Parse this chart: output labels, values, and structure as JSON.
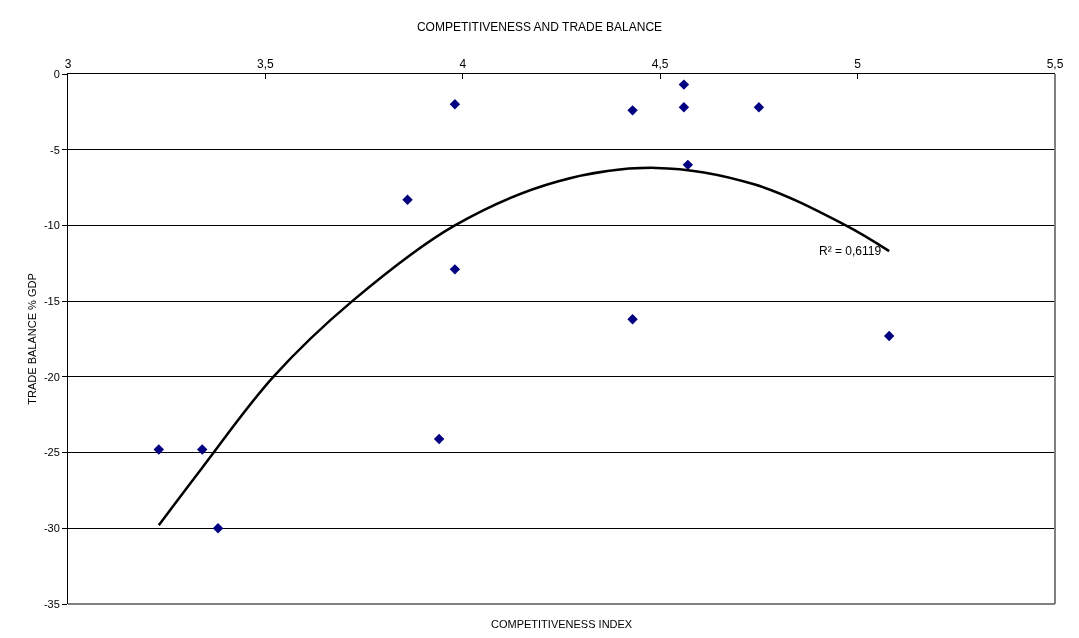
{
  "chart_data": {
    "type": "scatter",
    "title": "COMPETITIVENESS AND TRADE BALANCE",
    "xlabel": "COMPETITIVENESS INDEX",
    "ylabel": "TRADE BALANCE % GDP",
    "xlim": [
      3,
      5.5
    ],
    "xticks": [
      3,
      {
        "value": 3.5,
        "label": "3,5"
      },
      4,
      {
        "value": 4.5,
        "label": "4,5"
      },
      5,
      {
        "value": 5.5,
        "label": "5,5"
      }
    ],
    "ylim": [
      -35,
      0
    ],
    "yticks": [
      -35,
      -30,
      -25,
      -20,
      -15,
      -10,
      -5,
      0
    ],
    "grid": "y",
    "marker": "diamond",
    "series": [
      {
        "type": "scatter",
        "color": "#000080",
        "x": [
          3.23,
          3.34,
          3.38,
          3.86,
          3.94,
          3.98,
          3.98,
          4.43,
          4.43,
          4.56,
          4.56,
          4.57,
          4.75,
          5.08
        ],
        "values": [
          -24.8,
          -24.8,
          -30.0,
          -8.3,
          -24.1,
          -2.0,
          -12.9,
          -2.4,
          -16.2,
          -0.7,
          -2.2,
          -6.0,
          -2.2,
          -17.3
        ]
      },
      {
        "type": "line",
        "color": "#000000",
        "line_style": "solid",
        "marker": "none",
        "x": [
          3.23,
          3.34,
          3.52,
          3.72,
          3.98,
          4.24,
          4.49,
          4.74,
          4.97,
          5.08
        ],
        "values": [
          -29.8,
          -26.0,
          -20.0,
          -15.0,
          -10.0,
          -7.1,
          -6.2,
          -7.3,
          -10.0,
          -11.7
        ]
      }
    ],
    "annotations": [
      {
        "text": "R² = 0,6119",
        "x": 5.08,
        "y": -11.7
      }
    ]
  }
}
